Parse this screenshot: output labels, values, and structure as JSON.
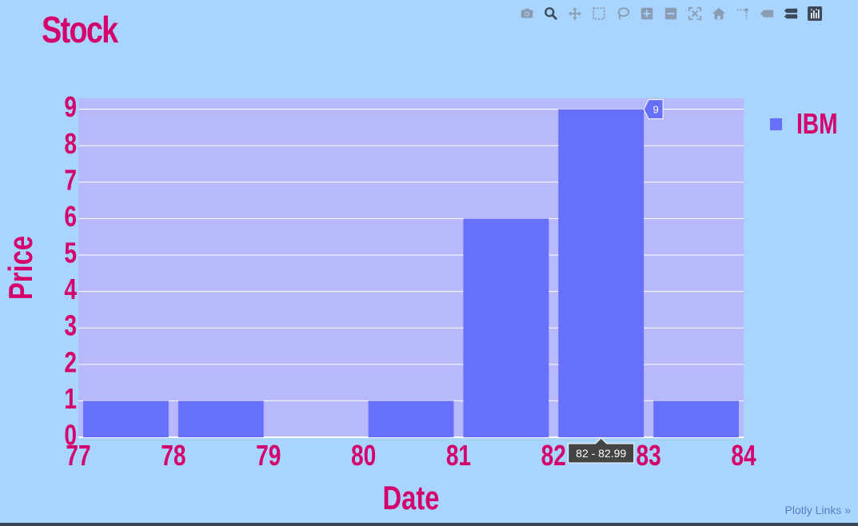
{
  "toolbar": {
    "buttons": [
      {
        "name": "camera-icon",
        "label": "Download plot as a png"
      },
      {
        "name": "zoom-icon",
        "label": "Zoom"
      },
      {
        "name": "pan-icon",
        "label": "Pan"
      },
      {
        "name": "box-select-icon",
        "label": "Box Select"
      },
      {
        "name": "lasso-select-icon",
        "label": "Lasso Select"
      },
      {
        "name": "zoom-in-icon",
        "label": "Zoom in"
      },
      {
        "name": "zoom-out-icon",
        "label": "Zoom out"
      },
      {
        "name": "autoscale-icon",
        "label": "Autoscale"
      },
      {
        "name": "reset-axes-icon",
        "label": "Reset axes"
      },
      {
        "name": "spike-lines-icon",
        "label": "Toggle Spike Lines"
      },
      {
        "name": "hover-closest-icon",
        "label": "Show closest data on hover"
      },
      {
        "name": "hover-compare-icon",
        "label": "Compare data on hover"
      },
      {
        "name": "plotly-logo-icon",
        "label": "Produced with Plotly"
      }
    ]
  },
  "links": {
    "plotly": "Plotly Links »"
  },
  "legend": {
    "label": "IBM"
  },
  "colors": {
    "background": "#a8d4fd",
    "plot_bg": "#b8b8fc",
    "bar": "#6670fa",
    "accent": "#d4006b",
    "grid": "#ffffff",
    "tooltip_bg": "#444444"
  },
  "chart_data": {
    "type": "bar",
    "title": "Stock",
    "xlabel": "Date",
    "ylabel": "Price",
    "bins": [
      {
        "start": 77,
        "end": 78,
        "value": 1
      },
      {
        "start": 78,
        "end": 79,
        "value": 1
      },
      {
        "start": 79,
        "end": 80,
        "value": 0
      },
      {
        "start": 80,
        "end": 81,
        "value": 1
      },
      {
        "start": 81,
        "end": 82,
        "value": 6
      },
      {
        "start": 82,
        "end": 83,
        "value": 9
      },
      {
        "start": 83,
        "end": 84,
        "value": 1
      }
    ],
    "series": [
      {
        "name": "IBM",
        "values": [
          1,
          1,
          0,
          1,
          6,
          9,
          1
        ]
      }
    ],
    "xlim": [
      77,
      84
    ],
    "ylim": [
      0,
      9.3
    ],
    "xticks": [
      77,
      78,
      79,
      80,
      81,
      82,
      83,
      84
    ],
    "yticks": [
      0,
      1,
      2,
      3,
      4,
      5,
      6,
      7,
      8,
      9
    ],
    "grid": true,
    "legend_position": "top-right",
    "hover": {
      "x_label": "82 - 82.99",
      "y_label": "9"
    }
  }
}
